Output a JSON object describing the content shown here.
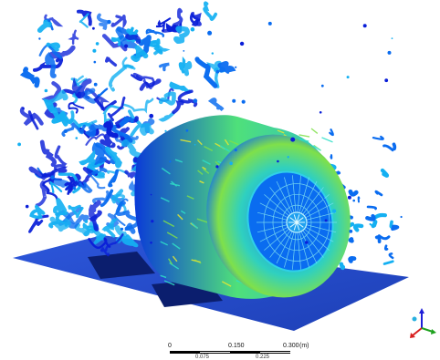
{
  "viewer": {
    "background": "#ffffff",
    "colormap": [
      "#0a1fd8",
      "#0a6cf0",
      "#14b0f2",
      "#2fe0c8",
      "#7fe04a",
      "#e8e830"
    ]
  },
  "scale_bar": {
    "tick_0": "0",
    "tick_mid": "0.150",
    "tick_end": "0.300",
    "unit": "(m)",
    "sub_1": "0.075",
    "sub_2": "0.225"
  },
  "triad": {
    "axes": [
      "x-axis",
      "y-axis",
      "z-axis"
    ],
    "colors": {
      "x": "#d81e1e",
      "y": "#1ea11e",
      "z": "#1e1ed8"
    }
  }
}
